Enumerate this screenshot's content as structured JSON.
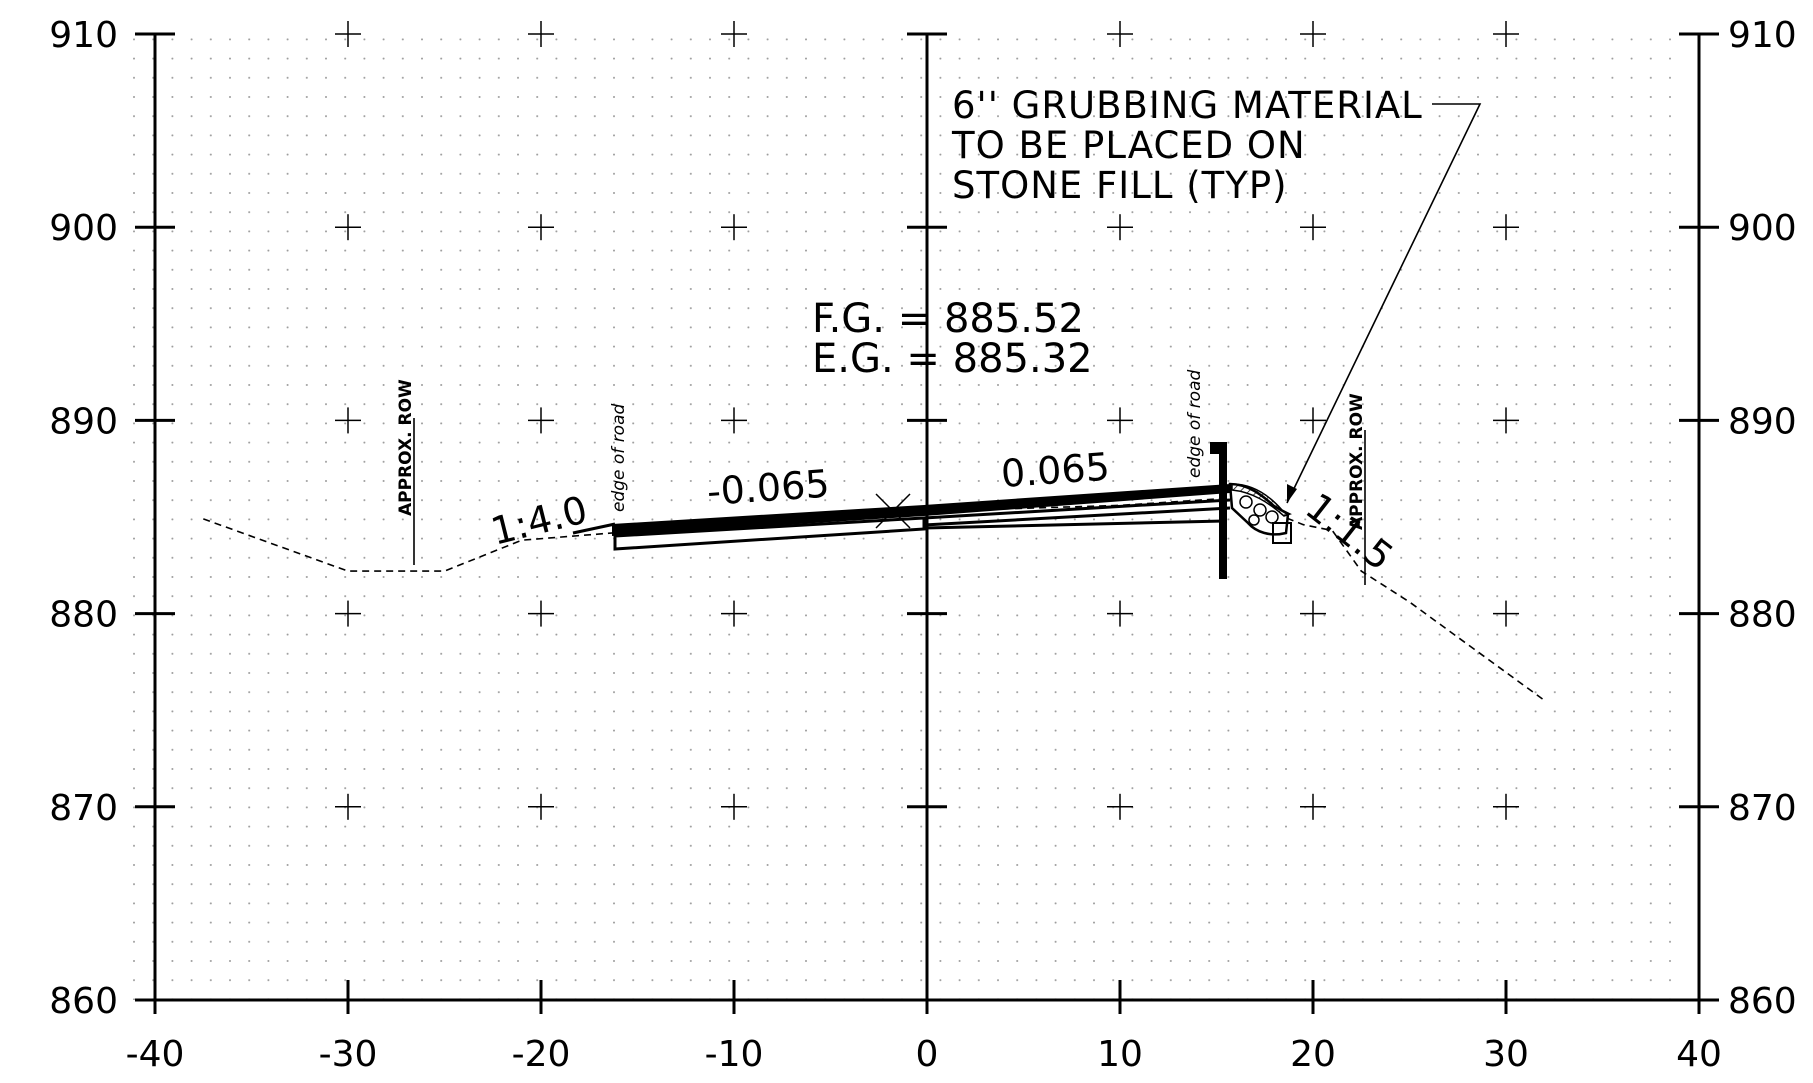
{
  "axes": {
    "x_min": -40,
    "x_max": 40,
    "y_min": 860,
    "y_max": 910,
    "x_ticks": [
      -40,
      -30,
      -20,
      -10,
      0,
      10,
      20,
      30,
      40
    ],
    "x_tick_labels": [
      "-40",
      "-30",
      "-20",
      "-10",
      "0",
      "10",
      "20",
      "30",
      "40"
    ],
    "y_ticks": [
      860,
      870,
      880,
      890,
      900,
      910
    ],
    "y_tick_labels": [
      "860",
      "870",
      "880",
      "890",
      "900",
      "910"
    ]
  },
  "annotations": {
    "note_lines": [
      "6'' GRUBBING MATERIAL",
      "TO BE PLACED ON",
      "STONE FILL (TYP)"
    ],
    "fg_label": "F.G. = 885.52",
    "eg_label": "E.G. = 885.32",
    "slope_left": "-0.065",
    "slope_right": "0.065",
    "fill_slope_left": "1:4.0",
    "fill_slope_right": "1:1.5",
    "edge_left": "edge of road",
    "edge_right": "edge of road",
    "row_left": "APPROX. ROW",
    "row_right": "APPROX. ROW"
  },
  "existing_ground": [
    [
      -37.5,
      884.9
    ],
    [
      -30,
      882.2
    ],
    [
      -25,
      882.2
    ],
    [
      -21,
      883.8
    ],
    [
      -16,
      884.2
    ],
    [
      -5,
      885.0
    ],
    [
      0,
      885.3
    ],
    [
      10,
      885.6
    ],
    [
      16,
      886.0
    ],
    [
      19.5,
      884.6
    ],
    [
      21,
      884.3
    ],
    [
      22.5,
      882.2
    ],
    [
      25,
      880.6
    ],
    [
      32,
      875.5
    ]
  ],
  "colors": {
    "line": "#000000",
    "grid_dot": "#9a9a9a",
    "background": "#ffffff"
  }
}
